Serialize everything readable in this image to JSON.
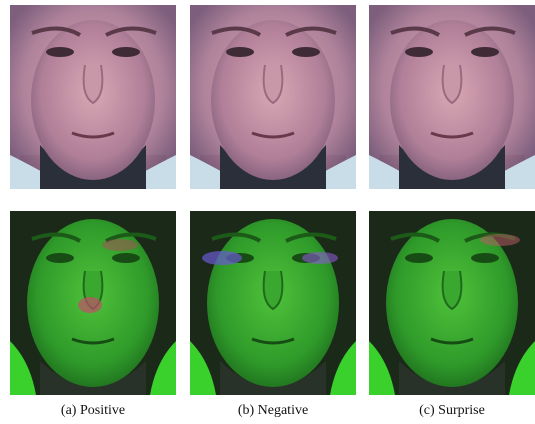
{
  "figure": {
    "captions": [
      "(a) Positive",
      "(b) Negative",
      "(c) Surprise"
    ]
  }
}
